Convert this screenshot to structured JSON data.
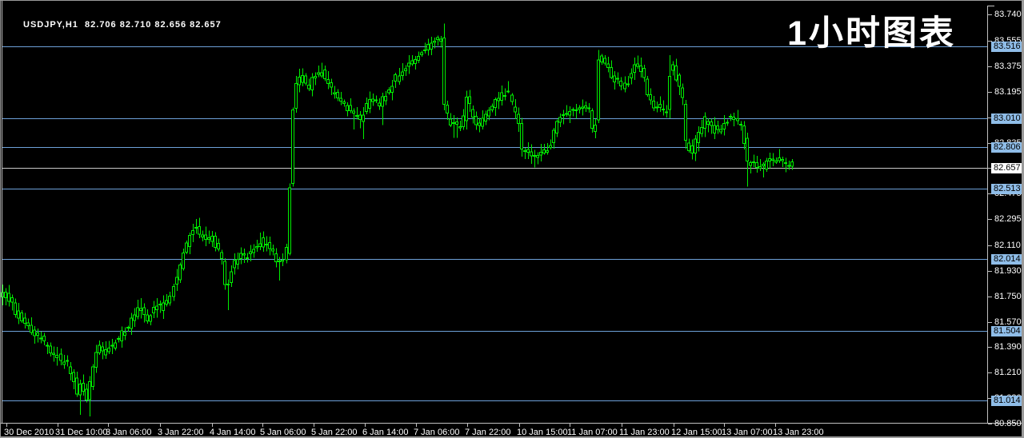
{
  "window": {
    "quote_line": "USDJPY,H1  82.706 82.710 82.656 82.657",
    "watermark": "1小时图表"
  },
  "colors": {
    "background": "#000000",
    "candle": "#00ee00",
    "level_line": "#6da0d8",
    "level_chip_bg": "#8fbde8",
    "bid_line": "#c8c8c8",
    "bid_chip_bg": "#ffffff",
    "axis": "#c0c0c0",
    "text": "#ffffff"
  },
  "chart_data": {
    "type": "candlestick",
    "symbol": "USDJPY",
    "timeframe": "H1",
    "quote": {
      "open": "82.706",
      "high": "82.710",
      "low": "82.656",
      "close": "82.657"
    },
    "grid": "off",
    "legend": "none",
    "y_axis": {
      "side": "right",
      "range": [
        80.85,
        83.74
      ],
      "tick_labels": [
        "83.740",
        "83.555",
        "83.375",
        "83.195",
        "83.015",
        "82.835",
        "82.655",
        "82.475",
        "82.295",
        "82.110",
        "81.930",
        "81.750",
        "81.570",
        "81.390",
        "81.210",
        "81.030",
        "80.850"
      ]
    },
    "x_axis": {
      "side": "bottom",
      "tick_labels": [
        {
          "label": "30 Dec 2010",
          "x": 4
        },
        {
          "label": "31 Dec 10:00",
          "x": 68
        },
        {
          "label": "3 Jan 06:00",
          "x": 131
        },
        {
          "label": "3 Jan 22:00",
          "x": 196
        },
        {
          "label": "4 Jan 14:00",
          "x": 261
        },
        {
          "label": "5 Jan 06:00",
          "x": 324
        },
        {
          "label": "5 Jan 22:00",
          "x": 388
        },
        {
          "label": "6 Jan 14:00",
          "x": 452
        },
        {
          "label": "7 Jan 06:00",
          "x": 516
        },
        {
          "label": "7 Jan 22:00",
          "x": 580
        },
        {
          "label": "10 Jan 15:00",
          "x": 645
        },
        {
          "label": "11 Jan 07:00",
          "x": 708
        },
        {
          "label": "11 Jan 23:00",
          "x": 773
        },
        {
          "label": "12 Jan 15:00",
          "x": 838
        },
        {
          "label": "13 Jan 07:00",
          "x": 901
        },
        {
          "label": "13 Jan 23:00",
          "x": 965
        }
      ]
    },
    "horizontal_levels": [
      {
        "label": "83.516",
        "price": 83.516
      },
      {
        "label": "83.010",
        "price": 83.01
      },
      {
        "label": "82.806",
        "price": 82.806
      },
      {
        "label": "82.513",
        "price": 82.513
      },
      {
        "label": "82.014",
        "price": 82.014
      },
      {
        "label": "81.504",
        "price": 81.504
      },
      {
        "label": "81.014",
        "price": 81.014
      }
    ],
    "bid_level": {
      "label": "82.657",
      "price": 82.657
    },
    "y_calibration": {
      "price": 83.516,
      "y": 57,
      "price_per_pixel": 0.005648
    },
    "x_range": [
      2,
      989
    ],
    "bars": 246,
    "path_anchors": [
      [
        2,
        81.76
      ],
      [
        10,
        81.755
      ],
      [
        20,
        81.645
      ],
      [
        30,
        81.56
      ],
      [
        40,
        81.5
      ],
      [
        50,
        81.46
      ],
      [
        57,
        81.42
      ],
      [
        62,
        81.365
      ],
      [
        70,
        81.33
      ],
      [
        78,
        81.295
      ],
      [
        85,
        81.27
      ],
      [
        92,
        81.17
      ],
      [
        97,
        81.06
      ],
      [
        101,
        81.14
      ],
      [
        106,
        81.07
      ],
      [
        109,
        81.015
      ],
      [
        113,
        81.14
      ],
      [
        118,
        81.31
      ],
      [
        123,
        81.4
      ],
      [
        130,
        81.35
      ],
      [
        137,
        81.39
      ],
      [
        144,
        81.42
      ],
      [
        150,
        81.465
      ],
      [
        157,
        81.51
      ],
      [
        163,
        81.555
      ],
      [
        170,
        81.625
      ],
      [
        176,
        81.69
      ],
      [
        181,
        81.61
      ],
      [
        185,
        81.56
      ],
      [
        190,
        81.645
      ],
      [
        196,
        81.69
      ],
      [
        202,
        81.67
      ],
      [
        208,
        81.715
      ],
      [
        214,
        81.76
      ],
      [
        220,
        81.85
      ],
      [
        226,
        81.975
      ],
      [
        230,
        82.075
      ],
      [
        235,
        82.115
      ],
      [
        240,
        82.21
      ],
      [
        244,
        82.255
      ],
      [
        249,
        82.19
      ],
      [
        254,
        82.165
      ],
      [
        259,
        82.155
      ],
      [
        264,
        82.17
      ],
      [
        269,
        82.125
      ],
      [
        274,
        82.075
      ],
      [
        279,
        81.975
      ],
      [
        283,
        81.76
      ],
      [
        287,
        81.86
      ],
      [
        291,
        81.955
      ],
      [
        296,
        82.03
      ],
      [
        302,
        82.04
      ],
      [
        308,
        82.03
      ],
      [
        314,
        82.06
      ],
      [
        320,
        82.09
      ],
      [
        326,
        82.145
      ],
      [
        331,
        82.09
      ],
      [
        336,
        82.11
      ],
      [
        341,
        82.105
      ],
      [
        347,
        81.975
      ],
      [
        352,
        81.985
      ],
      [
        358,
        82.02
      ],
      [
        362,
        82.45
      ],
      [
        366,
        83.05
      ],
      [
        370,
        83.25
      ],
      [
        375,
        83.3
      ],
      [
        380,
        83.28
      ],
      [
        385,
        83.2
      ],
      [
        390,
        83.27
      ],
      [
        395,
        83.32
      ],
      [
        400,
        83.35
      ],
      [
        407,
        83.3
      ],
      [
        413,
        83.22
      ],
      [
        420,
        83.18
      ],
      [
        427,
        83.12
      ],
      [
        433,
        83.1
      ],
      [
        440,
        83.05
      ],
      [
        447,
        83.02
      ],
      [
        453,
        83.0
      ],
      [
        458,
        83.08
      ],
      [
        464,
        83.15
      ],
      [
        470,
        83.12
      ],
      [
        475,
        83.1
      ],
      [
        482,
        83.16
      ],
      [
        488,
        83.22
      ],
      [
        494,
        83.28
      ],
      [
        500,
        83.32
      ],
      [
        507,
        83.38
      ],
      [
        513,
        83.4
      ],
      [
        520,
        83.42
      ],
      [
        527,
        83.46
      ],
      [
        533,
        83.5
      ],
      [
        540,
        83.53
      ],
      [
        546,
        83.55
      ],
      [
        551,
        83.58
      ],
      [
        554,
        83.6
      ],
      [
        556,
        83.1
      ],
      [
        559,
        83.04
      ],
      [
        563,
        82.98
      ],
      [
        568,
        82.95
      ],
      [
        573,
        82.96
      ],
      [
        578,
        82.94
      ],
      [
        585,
        83.17
      ],
      [
        590,
        83.05
      ],
      [
        595,
        82.98
      ],
      [
        600,
        82.96
      ],
      [
        605,
        83.0
      ],
      [
        610,
        83.05
      ],
      [
        615,
        83.1
      ],
      [
        620,
        83.12
      ],
      [
        625,
        83.15
      ],
      [
        630,
        83.18
      ],
      [
        635,
        83.2
      ],
      [
        640,
        83.12
      ],
      [
        645,
        83.05
      ],
      [
        649,
        82.95
      ],
      [
        652,
        82.79
      ],
      [
        657,
        82.76
      ],
      [
        662,
        82.78
      ],
      [
        667,
        82.74
      ],
      [
        672,
        82.77
      ],
      [
        677,
        82.75
      ],
      [
        682,
        82.78
      ],
      [
        687,
        82.8
      ],
      [
        692,
        82.9
      ],
      [
        697,
        82.98
      ],
      [
        702,
        83.03
      ],
      [
        707,
        83.06
      ],
      [
        712,
        83.04
      ],
      [
        717,
        83.07
      ],
      [
        722,
        83.06
      ],
      [
        727,
        83.09
      ],
      [
        732,
        83.12
      ],
      [
        737,
        83.06
      ],
      [
        741,
        82.92
      ],
      [
        745,
        82.95
      ],
      [
        749,
        83.4
      ],
      [
        751,
        83.45
      ],
      [
        756,
        83.42
      ],
      [
        761,
        83.35
      ],
      [
        766,
        83.3
      ],
      [
        771,
        83.28
      ],
      [
        776,
        83.25
      ],
      [
        781,
        83.22
      ],
      [
        786,
        83.28
      ],
      [
        791,
        83.35
      ],
      [
        796,
        83.41
      ],
      [
        801,
        83.36
      ],
      [
        806,
        83.28
      ],
      [
        809,
        83.18
      ],
      [
        813,
        83.12
      ],
      [
        818,
        83.1
      ],
      [
        823,
        83.08
      ],
      [
        828,
        83.07
      ],
      [
        833,
        83.02
      ],
      [
        836,
        83.15
      ],
      [
        838,
        83.33
      ],
      [
        841,
        83.38
      ],
      [
        844,
        83.33
      ],
      [
        847,
        83.28
      ],
      [
        851,
        83.22
      ],
      [
        855,
        83.1
      ],
      [
        858,
        82.85
      ],
      [
        862,
        82.8
      ],
      [
        866,
        82.78
      ],
      [
        870,
        82.85
      ],
      [
        874,
        82.9
      ],
      [
        878,
        82.93
      ],
      [
        882,
        83.0
      ],
      [
        886,
        82.97
      ],
      [
        890,
        82.94
      ],
      [
        894,
        82.92
      ],
      [
        898,
        82.93
      ],
      [
        902,
        82.95
      ],
      [
        906,
        82.97
      ],
      [
        910,
        83.0
      ],
      [
        914,
        83.02
      ],
      [
        918,
        83.01
      ],
      [
        922,
        82.99
      ],
      [
        926,
        82.95
      ],
      [
        930,
        82.88
      ],
      [
        933,
        82.72
      ],
      [
        937,
        82.68
      ],
      [
        941,
        82.72
      ],
      [
        945,
        82.66
      ],
      [
        949,
        82.7
      ],
      [
        953,
        82.64
      ],
      [
        957,
        82.68
      ],
      [
        961,
        82.72
      ],
      [
        965,
        82.7
      ],
      [
        969,
        82.69
      ],
      [
        973,
        82.72
      ],
      [
        977,
        82.7
      ],
      [
        981,
        82.68
      ],
      [
        985,
        82.7
      ],
      [
        989,
        82.657
      ]
    ],
    "spikes": [
      {
        "x": 97,
        "side": "low",
        "price": 80.912
      },
      {
        "x": 109,
        "side": "low",
        "price": 80.901
      },
      {
        "x": 176,
        "side": "high",
        "price": 81.737
      },
      {
        "x": 244,
        "side": "high",
        "price": 82.296
      },
      {
        "x": 283,
        "side": "low",
        "price": 81.652
      },
      {
        "x": 326,
        "side": "high",
        "price": 82.2
      },
      {
        "x": 347,
        "side": "low",
        "price": 81.861
      },
      {
        "x": 375,
        "side": "high",
        "price": 83.36
      },
      {
        "x": 400,
        "side": "high",
        "price": 83.4
      },
      {
        "x": 440,
        "side": "low",
        "price": 82.93
      },
      {
        "x": 455,
        "side": "low",
        "price": 82.86
      },
      {
        "x": 477,
        "side": "low",
        "price": 82.96
      },
      {
        "x": 553,
        "side": "high",
        "price": 83.677
      },
      {
        "x": 568,
        "side": "low",
        "price": 82.87
      },
      {
        "x": 635,
        "side": "high",
        "price": 83.27
      },
      {
        "x": 650,
        "side": "low",
        "price": 82.737
      },
      {
        "x": 667,
        "side": "low",
        "price": 82.66
      },
      {
        "x": 749,
        "side": "high",
        "price": 83.49
      },
      {
        "x": 796,
        "side": "high",
        "price": 83.45
      },
      {
        "x": 837,
        "side": "high",
        "price": 83.454
      },
      {
        "x": 933,
        "side": "low",
        "price": 82.525
      },
      {
        "x": 953,
        "side": "low",
        "price": 82.59
      }
    ]
  }
}
